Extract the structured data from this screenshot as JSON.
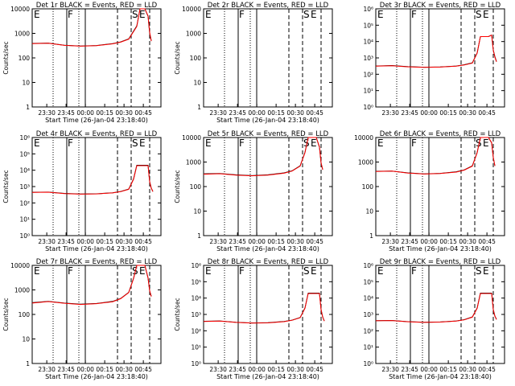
{
  "chart_data": [
    {
      "type": "line",
      "title": "Det 1r BLACK = Events, RED = LLD",
      "xlabel": "Start Time (26-Jan-04 23:18:40)",
      "ylabel": "Counts/sec",
      "y_scale": "log",
      "ylim": [
        1,
        10000
      ],
      "y_ticks": [
        "1",
        "10",
        "100",
        "1000",
        "10000"
      ],
      "x_ticks": [
        "23:30",
        "23:45",
        "00:00",
        "00:15",
        "00:30",
        "00:45"
      ],
      "markers": [
        "E",
        "F",
        "S",
        "E"
      ],
      "series": [
        {
          "name": "Events",
          "color": "#000000"
        },
        {
          "name": "LLD",
          "color": "#ff0000"
        }
      ],
      "events": [
        [
          0,
          390
        ],
        [
          10,
          400
        ],
        [
          20,
          330
        ],
        [
          30,
          305
        ],
        [
          40,
          320
        ],
        [
          50,
          380
        ],
        [
          55,
          450
        ],
        [
          60,
          600
        ],
        [
          65,
          2000
        ],
        [
          67,
          10000
        ],
        [
          70,
          10000
        ],
        [
          72,
          5000
        ],
        [
          73,
          1000
        ],
        [
          74,
          500
        ]
      ],
      "lld": [
        [
          0,
          380
        ],
        [
          10,
          395
        ],
        [
          20,
          325
        ],
        [
          30,
          300
        ],
        [
          40,
          315
        ],
        [
          50,
          375
        ],
        [
          55,
          440
        ],
        [
          60,
          580
        ],
        [
          65,
          1900
        ],
        [
          67,
          10000
        ],
        [
          70,
          10000
        ],
        [
          72,
          5200
        ],
        [
          73,
          1100
        ],
        [
          74,
          480
        ]
      ]
    },
    {
      "type": "line",
      "title": "Det 2r BLACK = Events, RED = LLD",
      "xlabel": "Start Time (26-Jan-04 23:18:40)",
      "ylabel": "Counts/sec",
      "y_scale": "log",
      "ylim": [
        1,
        10000
      ],
      "y_ticks": [
        "1",
        "10",
        "100",
        "1000",
        "10000"
      ],
      "x_ticks": [
        "23:30",
        "23:45",
        "00:00",
        "00:15",
        "00:30",
        "00:45"
      ],
      "markers": [
        "E",
        "F",
        "S",
        "E"
      ],
      "series": [
        {
          "name": "Events",
          "color": "#000000"
        },
        {
          "name": "LLD",
          "color": "#ff0000"
        }
      ],
      "events": [],
      "lld": []
    },
    {
      "type": "line",
      "title": "Det 3r BLACK = Events, RED = LLD",
      "xlabel": "",
      "ylabel": "",
      "y_scale": "log",
      "ylim": [
        1,
        1000000
      ],
      "y_ticks": [
        "10⁰",
        "10¹",
        "10²",
        "10³",
        "10⁴",
        "10⁵",
        "10⁶"
      ],
      "x_ticks": [
        "23:30",
        "23:45",
        "00:00",
        "00:15",
        "00:30",
        "00:45"
      ],
      "markers": [
        "E",
        "F",
        "S",
        "E"
      ],
      "series": [
        {
          "name": "Events",
          "color": "#000000"
        },
        {
          "name": "LLD",
          "color": "#ff0000"
        }
      ],
      "events": [
        [
          0,
          320
        ],
        [
          10,
          340
        ],
        [
          20,
          290
        ],
        [
          30,
          270
        ],
        [
          40,
          280
        ],
        [
          50,
          320
        ],
        [
          55,
          380
        ],
        [
          60,
          500
        ],
        [
          63,
          2000
        ],
        [
          65,
          20000
        ],
        [
          70,
          20000
        ],
        [
          72,
          25000
        ],
        [
          73,
          3000
        ],
        [
          74,
          1200
        ],
        [
          75,
          600
        ]
      ],
      "lld": [
        [
          0,
          310
        ],
        [
          10,
          330
        ],
        [
          20,
          285
        ],
        [
          30,
          265
        ],
        [
          40,
          275
        ],
        [
          50,
          310
        ],
        [
          55,
          370
        ],
        [
          60,
          480
        ],
        [
          63,
          2000
        ],
        [
          65,
          20000
        ],
        [
          70,
          20000
        ],
        [
          72,
          25000
        ],
        [
          73,
          3000
        ],
        [
          74,
          1100
        ],
        [
          75,
          580
        ]
      ]
    },
    {
      "type": "line",
      "title": "Det 4r BLACK = Events, RED = LLD",
      "xlabel": "Start Time (26-Jan-04 23:18:40)",
      "ylabel": "Counts/sec",
      "y_scale": "log",
      "ylim": [
        1,
        1000000
      ],
      "y_ticks": [
        "10⁰",
        "10¹",
        "10²",
        "10³",
        "10⁴",
        "10⁵",
        "10⁶"
      ],
      "x_ticks": [
        "23:30",
        "23:45",
        "00:00",
        "00:15",
        "00:30",
        "00:45"
      ],
      "markers": [
        "E",
        "F",
        "S",
        "E"
      ],
      "series": [
        {
          "name": "Events",
          "color": "#000000"
        },
        {
          "name": "LLD",
          "color": "#ff0000"
        }
      ],
      "events": [
        [
          0,
          450
        ],
        [
          10,
          460
        ],
        [
          20,
          380
        ],
        [
          30,
          350
        ],
        [
          40,
          360
        ],
        [
          50,
          420
        ],
        [
          55,
          500
        ],
        [
          60,
          700
        ],
        [
          63,
          3000
        ],
        [
          65,
          20000
        ],
        [
          70,
          20000
        ],
        [
          72,
          20000
        ],
        [
          73,
          2000
        ],
        [
          74,
          800
        ],
        [
          75,
          500
        ]
      ],
      "lld": [
        [
          0,
          440
        ],
        [
          10,
          455
        ],
        [
          20,
          375
        ],
        [
          30,
          345
        ],
        [
          40,
          355
        ],
        [
          50,
          410
        ],
        [
          55,
          490
        ],
        [
          60,
          680
        ],
        [
          63,
          2800
        ],
        [
          65,
          19000
        ],
        [
          70,
          19000
        ],
        [
          72,
          19000
        ],
        [
          73,
          1900
        ],
        [
          74,
          780
        ],
        [
          75,
          490
        ]
      ]
    },
    {
      "type": "line",
      "title": "Det 5r BLACK = Events, RED = LLD",
      "xlabel": "Start Time (26-Jan-04 23:18:40)",
      "ylabel": "Counts/sec",
      "y_scale": "log",
      "ylim": [
        1,
        10000
      ],
      "y_ticks": [
        "1",
        "10",
        "100",
        "1000",
        "10000"
      ],
      "x_ticks": [
        "23:30",
        "23:45",
        "00:00",
        "00:15",
        "00:30",
        "00:45"
      ],
      "markers": [
        "E",
        "F",
        "S",
        "E"
      ],
      "series": [
        {
          "name": "Events",
          "color": "#000000"
        },
        {
          "name": "LLD",
          "color": "#ff0000"
        }
      ],
      "events": [
        [
          0,
          330
        ],
        [
          10,
          340
        ],
        [
          20,
          300
        ],
        [
          30,
          280
        ],
        [
          40,
          300
        ],
        [
          50,
          360
        ],
        [
          55,
          440
        ],
        [
          60,
          700
        ],
        [
          63,
          2500
        ],
        [
          65,
          10000
        ],
        [
          70,
          10000
        ],
        [
          72,
          4000
        ],
        [
          73,
          900
        ],
        [
          74,
          500
        ]
      ],
      "lld": [
        [
          0,
          320
        ],
        [
          10,
          335
        ],
        [
          20,
          295
        ],
        [
          30,
          275
        ],
        [
          40,
          295
        ],
        [
          50,
          350
        ],
        [
          55,
          430
        ],
        [
          60,
          680
        ],
        [
          63,
          2400
        ],
        [
          65,
          10000
        ],
        [
          70,
          10000
        ],
        [
          72,
          4200
        ],
        [
          73,
          950
        ],
        [
          74,
          480
        ]
      ]
    },
    {
      "type": "line",
      "title": "Det 6r BLACK = Events, RED = LLD",
      "xlabel": "Start Time (26-Jan-04 23:18:40)",
      "ylabel": "",
      "y_scale": "log",
      "ylim": [
        1,
        10000
      ],
      "y_ticks": [
        "1",
        "10",
        "100",
        "1000",
        "10000"
      ],
      "x_ticks": [
        "23:30",
        "23:45",
        "00:00",
        "00:15",
        "00:30",
        "00:45"
      ],
      "markers": [
        "E",
        "F",
        "S",
        "E"
      ],
      "series": [
        {
          "name": "Events",
          "color": "#000000"
        },
        {
          "name": "LLD",
          "color": "#ff0000"
        }
      ],
      "events": [
        [
          0,
          420
        ],
        [
          10,
          430
        ],
        [
          20,
          360
        ],
        [
          30,
          330
        ],
        [
          40,
          345
        ],
        [
          50,
          400
        ],
        [
          55,
          480
        ],
        [
          60,
          700
        ],
        [
          63,
          2500
        ],
        [
          65,
          10000
        ],
        [
          70,
          10000
        ],
        [
          72,
          6000
        ],
        [
          73,
          1500
        ],
        [
          74,
          700
        ]
      ],
      "lld": [
        [
          0,
          410
        ],
        [
          10,
          425
        ],
        [
          20,
          355
        ],
        [
          30,
          325
        ],
        [
          40,
          340
        ],
        [
          50,
          390
        ],
        [
          55,
          470
        ],
        [
          60,
          680
        ],
        [
          63,
          2400
        ],
        [
          65,
          10000
        ],
        [
          70,
          10000
        ],
        [
          72,
          6200
        ],
        [
          73,
          1550
        ],
        [
          74,
          690
        ]
      ]
    },
    {
      "type": "line",
      "title": "Det 7r BLACK = Events, RED = LLD",
      "xlabel": "Start Time (26-Jan-04 23:18:40)",
      "ylabel": "Counts/sec",
      "y_scale": "log",
      "ylim": [
        1,
        10000
      ],
      "y_ticks": [
        "1",
        "10",
        "100",
        "1000",
        "10000"
      ],
      "x_ticks": [
        "23:30",
        "23:45",
        "00:00",
        "00:15",
        "00:30",
        "00:45"
      ],
      "markers": [
        "E",
        "F",
        "S",
        "E"
      ],
      "series": [
        {
          "name": "Events",
          "color": "#000000"
        },
        {
          "name": "LLD",
          "color": "#ff0000"
        }
      ],
      "events": [
        [
          0,
          300
        ],
        [
          10,
          340
        ],
        [
          20,
          290
        ],
        [
          30,
          260
        ],
        [
          40,
          280
        ],
        [
          50,
          340
        ],
        [
          55,
          450
        ],
        [
          60,
          800
        ],
        [
          63,
          3000
        ],
        [
          65,
          10000
        ],
        [
          70,
          10000
        ],
        [
          72,
          3000
        ],
        [
          73,
          900
        ],
        [
          74,
          550
        ]
      ],
      "lld": [
        [
          0,
          290
        ],
        [
          10,
          335
        ],
        [
          20,
          285
        ],
        [
          30,
          255
        ],
        [
          40,
          275
        ],
        [
          50,
          330
        ],
        [
          55,
          440
        ],
        [
          60,
          780
        ],
        [
          63,
          2900
        ],
        [
          65,
          10000
        ],
        [
          70,
          10000
        ],
        [
          72,
          3100
        ],
        [
          73,
          920
        ],
        [
          74,
          540
        ]
      ]
    },
    {
      "type": "line",
      "title": "Det 8r BLACK = Events, RED = LLD",
      "xlabel": "Start Time (26-Jan-04 23:18:40)",
      "ylabel": "Counts/sec",
      "y_scale": "log",
      "ylim": [
        1,
        1000000
      ],
      "y_ticks": [
        "10⁰",
        "10¹",
        "10²",
        "10³",
        "10⁴",
        "10⁵",
        "10⁶"
      ],
      "x_ticks": [
        "23:30",
        "23:45",
        "00:00",
        "00:15",
        "00:30",
        "00:45"
      ],
      "markers": [
        "E",
        "F",
        "S",
        "E"
      ],
      "series": [
        {
          "name": "Events",
          "color": "#000000"
        },
        {
          "name": "LLD",
          "color": "#ff0000"
        }
      ],
      "events": [
        [
          0,
          380
        ],
        [
          10,
          400
        ],
        [
          20,
          330
        ],
        [
          30,
          300
        ],
        [
          40,
          310
        ],
        [
          50,
          370
        ],
        [
          55,
          450
        ],
        [
          60,
          650
        ],
        [
          63,
          2500
        ],
        [
          65,
          20000
        ],
        [
          70,
          20000
        ],
        [
          72,
          20000
        ],
        [
          73,
          2000
        ],
        [
          74,
          700
        ],
        [
          75,
          400
        ]
      ],
      "lld": [
        [
          0,
          370
        ],
        [
          10,
          395
        ],
        [
          20,
          325
        ],
        [
          30,
          295
        ],
        [
          40,
          305
        ],
        [
          50,
          360
        ],
        [
          55,
          440
        ],
        [
          60,
          630
        ],
        [
          63,
          2400
        ],
        [
          65,
          19000
        ],
        [
          70,
          19000
        ],
        [
          72,
          19000
        ],
        [
          73,
          1900
        ],
        [
          74,
          690
        ],
        [
          75,
          390
        ]
      ]
    },
    {
      "type": "line",
      "title": "Det 9r BLACK = Events, RED = LLD",
      "xlabel": "Start Time (26-Jan-04 23:18:40)",
      "ylabel": "",
      "y_scale": "log",
      "ylim": [
        1,
        1000000
      ],
      "y_ticks": [
        "10⁰",
        "10¹",
        "10²",
        "10³",
        "10⁴",
        "10⁵",
        "10⁶"
      ],
      "x_ticks": [
        "23:30",
        "23:45",
        "00:00",
        "00:15",
        "00:30",
        "00:45"
      ],
      "markers": [
        "E",
        "F",
        "S",
        "E"
      ],
      "series": [
        {
          "name": "Events",
          "color": "#000000"
        },
        {
          "name": "LLD",
          "color": "#ff0000"
        }
      ],
      "events": [
        [
          0,
          420
        ],
        [
          10,
          430
        ],
        [
          20,
          360
        ],
        [
          30,
          330
        ],
        [
          40,
          345
        ],
        [
          50,
          400
        ],
        [
          55,
          480
        ],
        [
          60,
          700
        ],
        [
          63,
          2500
        ],
        [
          65,
          20000
        ],
        [
          70,
          20000
        ],
        [
          72,
          20000
        ],
        [
          73,
          2000
        ],
        [
          74,
          800
        ],
        [
          75,
          500
        ]
      ],
      "lld": [
        [
          0,
          410
        ],
        [
          10,
          425
        ],
        [
          20,
          355
        ],
        [
          30,
          325
        ],
        [
          40,
          340
        ],
        [
          50,
          390
        ],
        [
          55,
          470
        ],
        [
          60,
          680
        ],
        [
          63,
          2400
        ],
        [
          65,
          19000
        ],
        [
          70,
          19000
        ],
        [
          72,
          19000
        ],
        [
          73,
          1900
        ],
        [
          74,
          780
        ],
        [
          75,
          490
        ]
      ]
    }
  ]
}
